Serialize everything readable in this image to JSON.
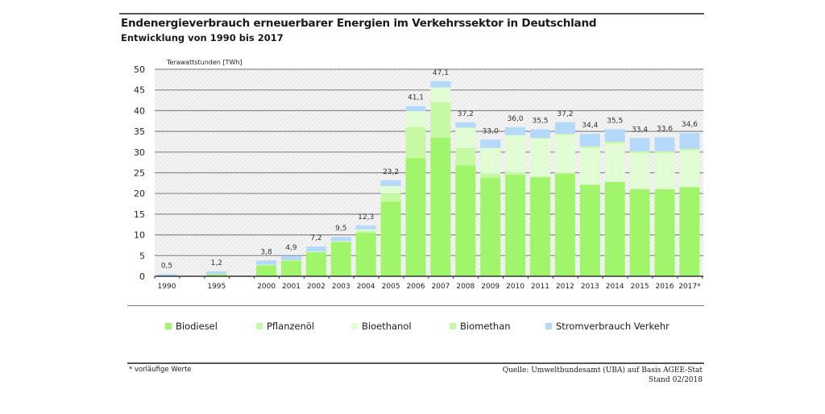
{
  "chart_data": {
    "type": "bar",
    "stacked": true,
    "title": "Endenergieverbrauch erneuerbarer Energien im Verkehrssektor in Deutschland",
    "subtitle": "Entwicklung von 1990 bis 2017",
    "ylabel": "Terawattstunden [TWh]",
    "xlabel": "",
    "ylim": [
      0,
      50
    ],
    "yticks": [
      0,
      5,
      10,
      15,
      20,
      25,
      30,
      35,
      40,
      45,
      50
    ],
    "ytick_labels": [
      "0",
      "5",
      "10",
      "15",
      "20",
      "25",
      "30",
      "35",
      "40",
      "45",
      "50"
    ],
    "grid": true,
    "legend_position": "bottom",
    "categories": [
      "1990",
      "1995",
      "2000",
      "2001",
      "2002",
      "2003",
      "2004",
      "2005",
      "2006",
      "2007",
      "2008",
      "2009",
      "2010",
      "2011",
      "2012",
      "2013",
      "2014",
      "2015",
      "2016",
      "2017*"
    ],
    "slots": [
      0,
      2,
      4,
      5,
      6,
      7,
      8,
      9,
      10,
      11,
      12,
      13,
      14,
      15,
      16,
      17,
      18,
      19,
      20,
      21
    ],
    "totals": [
      0.5,
      1.2,
      3.8,
      4.9,
      7.2,
      9.5,
      12.3,
      23.2,
      41.1,
      47.1,
      37.2,
      33.0,
      36.0,
      35.5,
      37.2,
      34.4,
      35.5,
      33.4,
      33.6,
      34.6
    ],
    "total_labels": [
      "0,5",
      "1,2",
      "3,8",
      "4,9",
      "7,2",
      "9,5",
      "12,3",
      "23,2",
      "41,1",
      "47,1",
      "37,2",
      "33,0",
      "36,0",
      "35,5",
      "37,2",
      "34,4",
      "35,5",
      "33,4",
      "33,6",
      "34,6"
    ],
    "series": [
      {
        "name": "Biodiesel",
        "color": "#a0f56a",
        "values": [
          0.0,
          0.5,
          2.6,
          3.7,
          5.8,
          8.3,
          10.5,
          18.0,
          28.5,
          33.5,
          26.8,
          23.8,
          24.5,
          23.9,
          24.8,
          22.1,
          22.8,
          21.0,
          21.0,
          21.5
        ]
      },
      {
        "name": "Pflanzenöl",
        "color": "#c6f9a4",
        "values": [
          0.0,
          0.0,
          0.2,
          0.2,
          0.1,
          0.1,
          0.4,
          2.0,
          7.5,
          8.5,
          4.2,
          1.0,
          0.6,
          0.2,
          0.1,
          0.0,
          0.0,
          0.0,
          0.0,
          0.0
        ]
      },
      {
        "name": "Bioethanol",
        "color": "#e2fcd3",
        "values": [
          0.0,
          0.0,
          0.0,
          0.0,
          0.1,
          0.1,
          0.4,
          1.8,
          3.9,
          3.6,
          4.9,
          6.2,
          9.0,
          9.2,
          9.3,
          8.9,
          9.3,
          8.8,
          8.8,
          8.9
        ]
      },
      {
        "name": "Biomethan",
        "color": "#c6f9a4",
        "values": [
          0.0,
          0.0,
          0.0,
          0.0,
          0.0,
          0.0,
          0.0,
          0.0,
          0.0,
          0.0,
          0.0,
          0.0,
          0.0,
          0.1,
          0.2,
          0.4,
          0.4,
          0.4,
          0.4,
          0.4
        ]
      },
      {
        "name": "Stromverbrauch Verkehr",
        "color": "#b4d9fa",
        "values": [
          0.5,
          0.7,
          1.0,
          1.0,
          1.2,
          1.0,
          1.0,
          1.4,
          1.2,
          1.5,
          1.3,
          2.0,
          1.9,
          2.1,
          2.8,
          3.0,
          3.0,
          3.2,
          3.4,
          3.8
        ]
      }
    ]
  },
  "footer": {
    "footnote": "* vorläufige Werte",
    "source_line1": "Quelle: Umweltbundesamt (UBA) auf Basis AGEE-Stat",
    "source_line2": "Stand 02/2018"
  }
}
